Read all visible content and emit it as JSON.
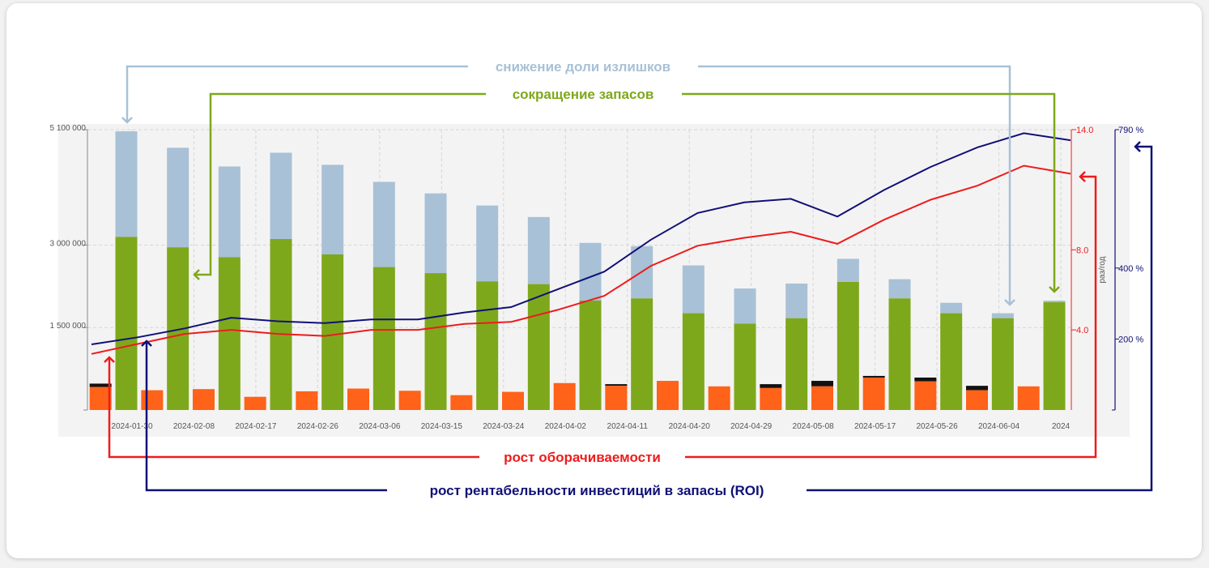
{
  "colors": {
    "green": "#7ea81b",
    "lightblue": "#a8c1d6",
    "orange": "#ff6219",
    "black": "#111111",
    "red": "#ee1c1c",
    "navy": "#101077",
    "plot_bg": "#f4f3f3"
  },
  "annotations": {
    "excess": "снижение доли излишков",
    "stock": "сокращение запасов",
    "turnover": "рост оборачиваемости",
    "roi": "рост рентабельности инвестиций в запасы (ROI)"
  },
  "chart_data": {
    "type": "bar",
    "xtick_labels": [
      "2024-01-30",
      "2024-02-08",
      "2024-02-17",
      "2024-02-26",
      "2024-03-06",
      "2024-03-15",
      "2024-03-24",
      "2024-04-02",
      "2024-04-11",
      "2024-04-20",
      "2024-04-29",
      "2024-05-08",
      "2024-05-17",
      "2024-05-26",
      "2024-06-04",
      "2024"
    ],
    "y_left": {
      "ticks": [
        0,
        1500000,
        3000000,
        5100000
      ],
      "tick_labels": [
        "",
        "1 500 000",
        "3 000 000",
        "5 100 000"
      ],
      "ylim": [
        0,
        5100000
      ]
    },
    "y_right_turnover": {
      "label": "раз/год",
      "ticks": [
        4.0,
        8.0,
        14.0
      ],
      "tick_labels": [
        "4.0",
        "8.0",
        "14.0"
      ],
      "ylim": [
        0,
        14
      ]
    },
    "y_right_roi": {
      "ticks": [
        200,
        400,
        790
      ],
      "tick_labels": [
        "200 %",
        "400 %",
        "790 %"
      ],
      "ylim": [
        0,
        790
      ]
    },
    "grid": true,
    "stacked_bars": {
      "green": [
        3150000,
        2960000,
        2780000,
        3110000,
        2830000,
        2600000,
        2490000,
        2340000,
        2290000,
        1990000,
        2030000,
        1760000,
        1570000,
        1670000,
        2330000,
        2030000,
        1760000,
        1670000,
        1960000
      ],
      "lightblue": [
        1920000,
        1810000,
        1650000,
        1570000,
        1630000,
        1550000,
        1450000,
        1380000,
        1220000,
        1050000,
        950000,
        870000,
        640000,
        630000,
        420000,
        350000,
        190000,
        90000,
        30000
      ],
      "orange": [
        420000,
        360000,
        380000,
        240000,
        340000,
        390000,
        350000,
        270000,
        330000,
        490000,
        440000,
        530000,
        430000,
        400000,
        430000,
        590000,
        520000,
        360000,
        430000
      ],
      "black": [
        60000,
        0,
        0,
        0,
        0,
        0,
        0,
        0,
        0,
        0,
        30000,
        0,
        0,
        70000,
        100000,
        30000,
        70000,
        80000,
        0
      ]
    },
    "series": [
      {
        "axis": "turnover",
        "values": [
          2.8,
          3.3,
          3.8,
          4.0,
          3.8,
          3.7,
          4.0,
          4.0,
          4.3,
          4.4,
          5.0,
          5.7,
          7.2,
          8.2,
          8.6,
          8.9,
          8.3,
          9.5,
          10.5,
          11.2,
          12.2,
          11.8
        ]
      },
      {
        "axis": "roi",
        "values": [
          185,
          205,
          230,
          260,
          250,
          245,
          255,
          255,
          275,
          290,
          340,
          390,
          480,
          555,
          585,
          595,
          545,
          620,
          685,
          740,
          780,
          760
        ]
      }
    ]
  }
}
